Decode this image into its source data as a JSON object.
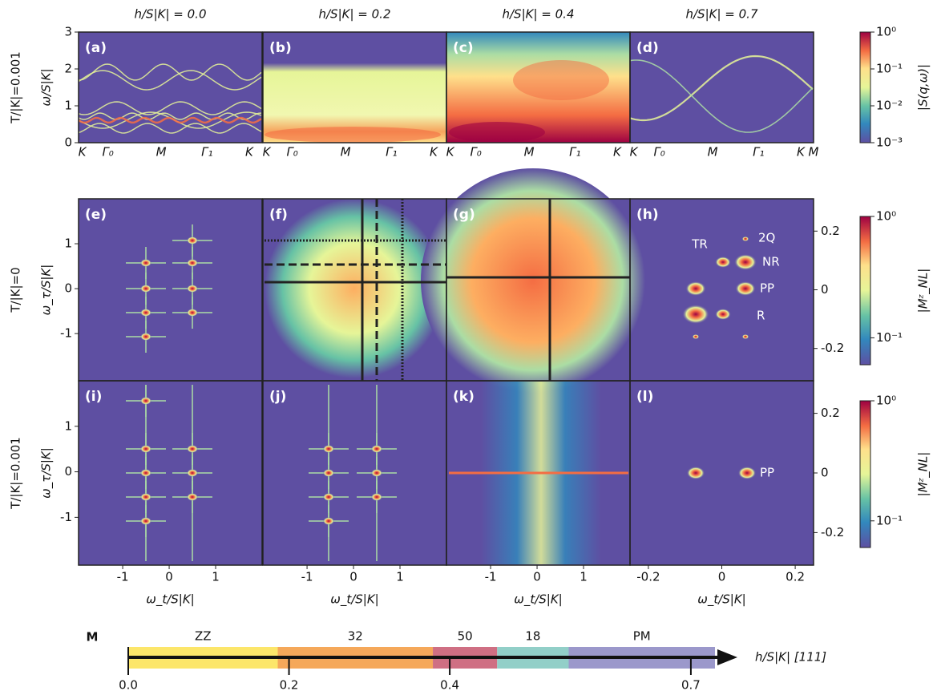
{
  "columns": [
    "h/S|K| = 0.0",
    "h/S|K| = 0.2",
    "h/S|K| = 0.4",
    "h/S|K| = 0.7"
  ],
  "rows": [
    "T/|K|=0.001",
    "T/|K|=0",
    "T/|K|=0.001"
  ],
  "panel_labels": [
    "(a)",
    "(b)",
    "(c)",
    "(d)",
    "(e)",
    "(f)",
    "(g)",
    "(h)",
    "(i)",
    "(j)",
    "(k)",
    "(l)"
  ],
  "spectrum_axis": {
    "ylabel": "ω/S|K|",
    "ylim": [
      0,
      3
    ],
    "yticks": [
      0,
      1,
      2,
      3
    ],
    "xtick_labels": [
      [
        "K",
        "Γ₀",
        "M",
        "Γ₁",
        "K"
      ],
      [
        "K",
        "Γ₀",
        "M",
        "Γ₁",
        "K"
      ],
      [
        "K",
        "Γ₀",
        "M",
        "Γ₁",
        "K"
      ],
      [
        "K",
        "Γ₀",
        "M",
        "Γ₁",
        "K",
        "M"
      ]
    ]
  },
  "map_axis": {
    "ylabel": "ω_τ/S|K|",
    "xlabel": "ω_t/S|K|",
    "xlim": [
      -1.95,
      2.0
    ],
    "ylim": [
      -2.05,
      2.0
    ],
    "xticks": [
      -1,
      0,
      1
    ],
    "yticks": [
      -1,
      0,
      1
    ]
  },
  "zoom_axis": {
    "xlabel": "ω_t/S|K|",
    "xlim": [
      -0.25,
      0.25
    ],
    "ylim": [
      -0.25,
      0.25
    ],
    "xticks": [
      -0.2,
      0,
      0.2
    ],
    "yticks": [
      -0.2,
      0,
      0.2
    ]
  },
  "colorbars": [
    {
      "label": "|S(q,ω)|",
      "log": true,
      "lim": [
        0.001,
        1
      ],
      "ticks": [
        {
          "value": 1,
          "label": "10⁰"
        },
        {
          "value": 0.1,
          "label": "10⁻¹"
        },
        {
          "value": 0.01,
          "label": "10⁻²"
        },
        {
          "value": 0.001,
          "label": "10⁻³"
        }
      ]
    },
    {
      "label": "|Mᶻ_NL|",
      "log": true,
      "lim": [
        0.06,
        1
      ],
      "ticks": [
        {
          "value": 1,
          "label": "10⁰"
        },
        {
          "value": 0.1,
          "label": "10⁻¹"
        }
      ]
    },
    {
      "label": "|Mᶻ_NL|",
      "log": true,
      "lim": [
        0.06,
        1
      ],
      "ticks": [
        {
          "value": 1,
          "label": "10⁰"
        },
        {
          "value": 0.1,
          "label": "10⁻¹"
        }
      ]
    }
  ],
  "annotations_h": [
    "TR",
    "2Q",
    "NR",
    "PP",
    "R"
  ],
  "annotations_l": [
    "PP"
  ],
  "phase_diagram": {
    "label": "M",
    "xlabel": "h/S|K| [111]",
    "xlim": [
      0,
      0.73
    ],
    "xticks": [
      {
        "value": 0,
        "label": "0.0"
      },
      0.2,
      0.4,
      0.7
    ],
    "segments": [
      {
        "name": "ZZ",
        "start": 0,
        "end": 0.186,
        "color": "#fce66a"
      },
      {
        "name": "32",
        "start": 0.186,
        "end": 0.379,
        "color": "#f5a85a"
      },
      {
        "name": "50",
        "start": 0.379,
        "end": 0.459,
        "color": "#cf6f83"
      },
      {
        "name": "18",
        "start": 0.459,
        "end": 0.548,
        "color": "#92cfc8"
      },
      {
        "name": "PM",
        "start": 0.548,
        "end": 0.73,
        "color": "#9b98cb"
      }
    ]
  }
}
